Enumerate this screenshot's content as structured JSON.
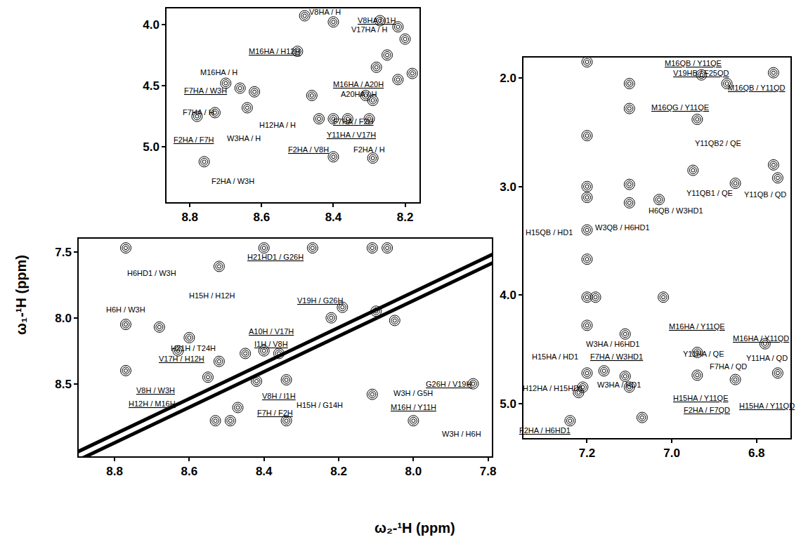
{
  "chart_data": [
    {
      "type": "scatter",
      "xlim": [
        8.865,
        8.16
      ],
      "ylim": [
        5.45,
        3.87
      ],
      "xticks": [
        8.8,
        8.6,
        8.4,
        8.2
      ],
      "yticks": [
        {
          "value": 4,
          "label": "4.0"
        },
        4.5,
        {
          "value": 5,
          "label": "5.0"
        }
      ],
      "x": [
        8.48,
        8.4,
        8.27,
        8.22,
        8.5,
        8.7,
        8.66,
        8.62,
        8.78,
        8.73,
        8.64,
        8.46,
        8.44,
        8.4,
        8.36,
        8.31,
        8.29,
        8.3,
        8.25,
        8.2,
        8.18,
        8.28,
        8.22,
        8.76,
        8.4,
        8.29
      ],
      "y": [
        3.93,
        3.98,
        3.97,
        4.02,
        4.22,
        4.48,
        4.52,
        4.55,
        4.75,
        4.72,
        4.68,
        4.58,
        4.77,
        4.77,
        4.77,
        4.58,
        4.62,
        4.77,
        4.25,
        4.12,
        4.4,
        4.35,
        4.45,
        5.12,
        5.08,
        5.09
      ],
      "annotations": [
        {
          "text": "V8HA / H",
          "x": 8.424,
          "y": 3.9,
          "underlined": false
        },
        {
          "text": "V8HA / I1H",
          "x": 8.28,
          "y": 3.966,
          "underlined": true
        },
        {
          "text": "V17HA / H",
          "x": 8.3,
          "y": 4.04,
          "underlined": false
        },
        {
          "text": "M16HA / H12H",
          "x": 8.565,
          "y": 4.22,
          "underlined": true
        },
        {
          "text": "M16HA / H",
          "x": 8.72,
          "y": 4.39,
          "underlined": false
        },
        {
          "text": "F7HA / W3H",
          "x": 8.757,
          "y": 4.54,
          "underlined": true
        },
        {
          "text": "F7HA / H",
          "x": 8.775,
          "y": 4.72,
          "underlined": false
        },
        {
          "text": "M16HA / A20H",
          "x": 8.33,
          "y": 4.49,
          "underlined": true
        },
        {
          "text": "A20HA / H",
          "x": 8.33,
          "y": 4.57,
          "underlined": false
        },
        {
          "text": "F7HA / F2H",
          "x": 8.345,
          "y": 4.79,
          "underlined": true
        },
        {
          "text": "Y11HA / V17H",
          "x": 8.35,
          "y": 4.9,
          "underlined": true
        },
        {
          "text": "W3HA / H",
          "x": 8.65,
          "y": 4.93,
          "underlined": false
        },
        {
          "text": "H12HA / H",
          "x": 8.555,
          "y": 4.82,
          "underlined": false
        },
        {
          "text": "F2HA / F7H",
          "x": 8.788,
          "y": 4.94,
          "underlined": true
        },
        {
          "text": "F2HA / V8H",
          "x": 8.47,
          "y": 5.02,
          "underlined": true
        },
        {
          "text": "F2HA / H",
          "x": 8.3,
          "y": 5.02,
          "underlined": false
        },
        {
          "text": "F2HA / W3H",
          "x": 8.68,
          "y": 5.28,
          "underlined": false
        }
      ]
    },
    {
      "type": "scatter",
      "xlim": [
        8.896,
        7.79
      ],
      "ylim": [
        9.05,
        7.4
      ],
      "xticks": [
        8.8,
        8.6,
        8.4,
        8.2,
        {
          "value": 8,
          "label": "8.0"
        },
        7.8
      ],
      "yticks": [
        7.5,
        {
          "value": 8,
          "label": "8.0"
        },
        8.5
      ],
      "x": [
        8.77,
        8.4,
        8.27,
        8.11,
        8.52,
        8.77,
        8.77,
        8.68,
        8.6,
        8.63,
        8.52,
        8.45,
        8.4,
        8.36,
        8.22,
        8.19,
        8.1,
        8.05,
        8.42,
        8.34,
        8.53,
        8.49,
        8.34,
        8.0,
        8.47,
        7.84,
        8.11,
        8.07,
        8.55
      ],
      "y": [
        7.47,
        7.47,
        7.47,
        7.47,
        7.61,
        8.05,
        8.4,
        8.07,
        8.15,
        8.25,
        8.33,
        8.27,
        8.25,
        8.27,
        8.0,
        7.92,
        7.95,
        8.02,
        8.48,
        8.47,
        8.78,
        8.78,
        8.78,
        8.78,
        8.68,
        8.5,
        8.58,
        7.47,
        8.45
      ],
      "diagonal": {
        "x": [
          8.9,
          7.78
        ],
        "y": [
          9.05,
          7.54
        ]
      },
      "annotations": [
        {
          "text": "H6HD1 / W3H",
          "x": 8.7,
          "y": 7.66,
          "underlined": false
        },
        {
          "text": "H21HD1 / G26H",
          "x": 8.37,
          "y": 7.54,
          "underlined": true
        },
        {
          "text": "H6H / W3H",
          "x": 8.77,
          "y": 7.94,
          "underlined": false
        },
        {
          "text": "H15H / H12H",
          "x": 8.54,
          "y": 7.83,
          "underlined": false
        },
        {
          "text": "V19H / G26H",
          "x": 8.25,
          "y": 7.87,
          "underlined": true
        },
        {
          "text": "A10H / V17H",
          "x": 8.38,
          "y": 8.1,
          "underlined": true
        },
        {
          "text": "I1H / V8H",
          "x": 8.38,
          "y": 8.2,
          "underlined": true
        },
        {
          "text": "H21H / T24H",
          "x": 8.59,
          "y": 8.23,
          "underlined": false
        },
        {
          "text": "V17H / H12H",
          "x": 8.62,
          "y": 8.31,
          "underlined": true
        },
        {
          "text": "V8H / W3H",
          "x": 8.69,
          "y": 8.55,
          "underlined": true
        },
        {
          "text": "H12H / M16H",
          "x": 8.7,
          "y": 8.65,
          "underlined": true
        },
        {
          "text": "V8H / I1H",
          "x": 8.36,
          "y": 8.59,
          "underlined": true
        },
        {
          "text": "H15H / G14H",
          "x": 8.25,
          "y": 8.66,
          "underlined": false
        },
        {
          "text": "W3H / G5H",
          "x": 8.0,
          "y": 8.57,
          "underlined": false
        },
        {
          "text": "G26H / V19H",
          "x": 7.905,
          "y": 8.5,
          "underlined": true
        },
        {
          "text": "M16H / Y11H",
          "x": 8.0,
          "y": 8.68,
          "underlined": true
        },
        {
          "text": "F7H / F2H",
          "x": 8.37,
          "y": 8.72,
          "underlined": true
        },
        {
          "text": "W3H / H6H",
          "x": 7.87,
          "y": 8.88,
          "underlined": false
        }
      ]
    },
    {
      "type": "scatter",
      "xlim": [
        7.35,
        6.72
      ],
      "ylim": [
        5.32,
        1.81
      ],
      "xticks": [
        7.2,
        {
          "value": 7,
          "label": "7.0"
        },
        6.8
      ],
      "yticks": [
        {
          "value": 2,
          "label": "2.0"
        },
        {
          "value": 3,
          "label": "3.0"
        },
        {
          "value": 4,
          "label": "4.0"
        },
        {
          "value": 5,
          "label": "5.0"
        }
      ],
      "x": [
        7.2,
        7.1,
        7.1,
        6.93,
        6.94,
        6.87,
        6.76,
        7.2,
        7.2,
        7.2,
        7.1,
        7.1,
        6.95,
        6.85,
        6.76,
        6.75,
        7.03,
        7.2,
        7.2,
        7.2,
        7.18,
        7.11,
        7.02,
        7.2,
        7.2,
        7.21,
        7.11,
        7.1,
        7.07,
        6.94,
        6.94,
        6.85,
        6.78,
        6.75,
        7.24,
        7.22,
        7.16
      ],
      "y": [
        1.85,
        2.05,
        2.28,
        1.97,
        2.38,
        2.05,
        1.95,
        2.53,
        3.1,
        3.0,
        2.98,
        3.15,
        2.85,
        2.97,
        2.8,
        2.92,
        3.12,
        3.4,
        3.67,
        4.02,
        4.02,
        4.36,
        4.02,
        4.28,
        4.72,
        4.85,
        4.75,
        4.85,
        5.13,
        4.53,
        4.74,
        4.78,
        4.45,
        4.72,
        5.16,
        4.9,
        4.7
      ],
      "annotations": [
        {
          "text": "M16QB / Y11QE",
          "x": 6.95,
          "y": 1.86,
          "underlined": true
        },
        {
          "text": "V19HB / F25QD",
          "x": 6.93,
          "y": 1.95,
          "underlined": true
        },
        {
          "text": "M16QB / Y11QD",
          "x": 6.8,
          "y": 2.09,
          "underlined": true
        },
        {
          "text": "M16QG / Y11QE",
          "x": 6.98,
          "y": 2.27,
          "underlined": true
        },
        {
          "text": "Y11QB2 / QE",
          "x": 6.89,
          "y": 2.6,
          "underlined": false
        },
        {
          "text": "Y11QB / QD",
          "x": 6.78,
          "y": 3.07,
          "underlined": false
        },
        {
          "text": "Y11QB1 / QE",
          "x": 6.91,
          "y": 3.06,
          "underlined": false
        },
        {
          "text": "H15QB / HD1",
          "x": 7.29,
          "y": 3.42,
          "underlined": false
        },
        {
          "text": "W3QB / H6HD1",
          "x": 7.117,
          "y": 3.38,
          "underlined": false
        },
        {
          "text": "H6QB / W3HD1",
          "x": 6.99,
          "y": 3.22,
          "underlined": false
        },
        {
          "text": "M16HA / Y11QE",
          "x": 6.94,
          "y": 4.29,
          "underlined": true
        },
        {
          "text": "M16HA / Y11QD",
          "x": 6.79,
          "y": 4.4,
          "underlined": true
        },
        {
          "text": "W3HA / H6HD1",
          "x": 7.14,
          "y": 4.45,
          "underlined": false
        },
        {
          "text": "Y11HA / QE",
          "x": 6.925,
          "y": 4.54,
          "underlined": false
        },
        {
          "text": "H15HA / HD1",
          "x": 7.275,
          "y": 4.57,
          "underlined": false
        },
        {
          "text": "F7HA / W3HD1",
          "x": 7.13,
          "y": 4.57,
          "underlined": true
        },
        {
          "text": "F7HA / QD",
          "x": 6.867,
          "y": 4.66,
          "underlined": false
        },
        {
          "text": "Y11HA / QD",
          "x": 6.775,
          "y": 4.58,
          "underlined": false
        },
        {
          "text": "H12HA / H15HD1",
          "x": 7.28,
          "y": 4.86,
          "underlined": false
        },
        {
          "text": "W3HA / HD1",
          "x": 7.125,
          "y": 4.83,
          "underlined": false
        },
        {
          "text": "H15HA / Y11QE",
          "x": 6.933,
          "y": 4.95,
          "underlined": true
        },
        {
          "text": "H15HA / Y11QD",
          "x": 6.775,
          "y": 5.02,
          "underlined": true
        },
        {
          "text": "F2HA / F7QD",
          "x": 6.917,
          "y": 5.06,
          "underlined": true
        },
        {
          "text": "F2HA / H6HD1",
          "x": 7.3,
          "y": 5.25,
          "underlined": true
        }
      ]
    }
  ],
  "axis_titles": {
    "x_label": "ω₂-¹H (ppm)",
    "y_label": "ω₁-¹H (ppm)"
  }
}
